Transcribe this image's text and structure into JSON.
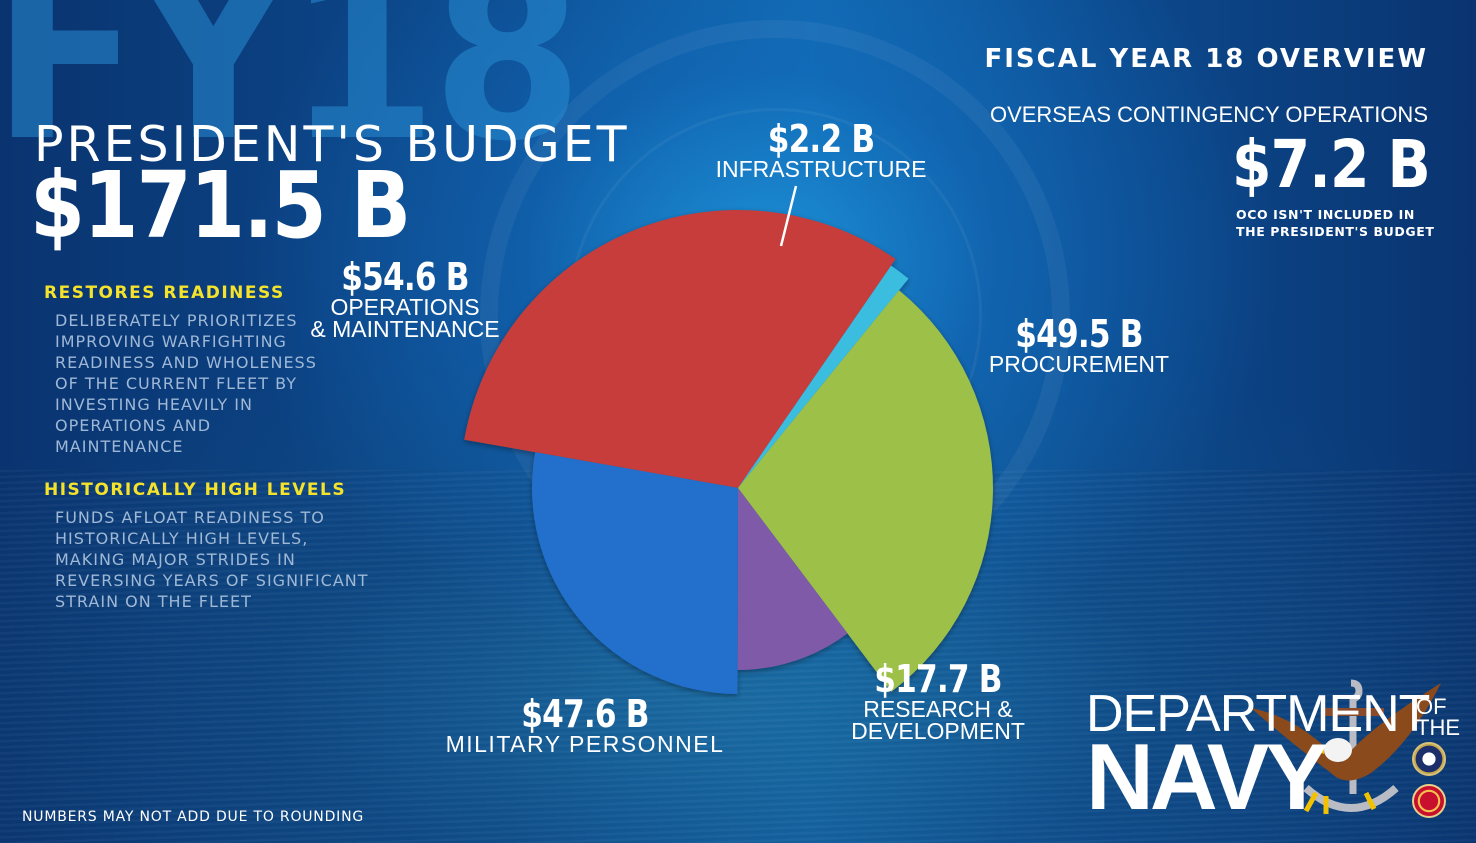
{
  "watermark": "FY18",
  "header": {
    "title": "PRESIDENT'S BUDGET",
    "total": "$171.5 B"
  },
  "sidebar": {
    "sections": [
      {
        "heading": "RESTORES READINESS",
        "lines": [
          "DELIBERATELY PRIORITIZES",
          "IMPROVING WARFIGHTING",
          "READINESS AND WHOLENESS",
          "OF THE CURRENT FLEET BY",
          "INVESTING HEAVILY IN",
          "OPERATIONS AND",
          "MAINTENANCE"
        ]
      },
      {
        "heading": "HISTORICALLY HIGH LEVELS",
        "lines": [
          "FUNDS AFLOAT READINESS TO",
          "HISTORICALLY HIGH LEVELS,",
          "MAKING MAJOR STRIDES IN",
          "REVERSING YEARS OF SIGNIFICANT",
          "STRAIN ON THE FLEET"
        ]
      }
    ]
  },
  "overview": {
    "title": "FISCAL YEAR 18 OVERVIEW",
    "oco_title": "OVERSEAS CONTINGENCY OPERATIONS",
    "oco_amount": "$7.2 B",
    "oco_note_lines": [
      "OCO ISN'T INCLUDED IN",
      "THE PRESIDENT'S BUDGET"
    ]
  },
  "labels": {
    "om": {
      "amount": "$54.6 B",
      "lines": [
        "OPERATIONS",
        "& MAINTENANCE"
      ]
    },
    "infra": {
      "amount": "$2.2 B",
      "lines": [
        "INFRASTRUCTURE"
      ]
    },
    "proc": {
      "amount": "$49.5 B",
      "lines": [
        "PROCUREMENT"
      ]
    },
    "rd": {
      "amount": "$17.7 B",
      "lines": [
        "RESEARCH &",
        "DEVELOPMENT"
      ]
    },
    "mp": {
      "amount": "$47.6 B",
      "lines": [
        "MILITARY PERSONNEL"
      ]
    }
  },
  "footnote": "NUMBERS MAY NOT ADD DUE TO ROUNDING",
  "logo": {
    "line1": "DEPARTMENT",
    "line2": "NAVY",
    "of": "OF",
    "the": "THE"
  },
  "colors": {
    "om": "#c63d3a",
    "infra": "#3bbde0",
    "proc": "#9dc04a",
    "rd": "#7e5aa8",
    "mp": "#2270cc",
    "heading_yellow": "#f5e22b",
    "body_text": "#9fb8d6"
  },
  "chart_data": {
    "type": "pie",
    "title": "FY18 President's Budget $171.5 B",
    "unit": "$ Billions",
    "categories": [
      "Operations & Maintenance",
      "Infrastructure",
      "Procurement",
      "Research & Development",
      "Military Personnel"
    ],
    "values": [
      54.6,
      2.2,
      49.5,
      17.7,
      47.6
    ],
    "labels": [
      "$54.6 B",
      "$2.2 B",
      "$49.5 B",
      "$17.7 B",
      "$47.6 B"
    ],
    "colors": [
      "#c63d3a",
      "#3bbde0",
      "#9dc04a",
      "#7e5aa8",
      "#2270cc"
    ],
    "total": 171.5,
    "annotations": [
      "OCO $7.2 B not included in the President's Budget",
      "Numbers may not add due to rounding"
    ],
    "style": "variable-radius exploded pie"
  }
}
